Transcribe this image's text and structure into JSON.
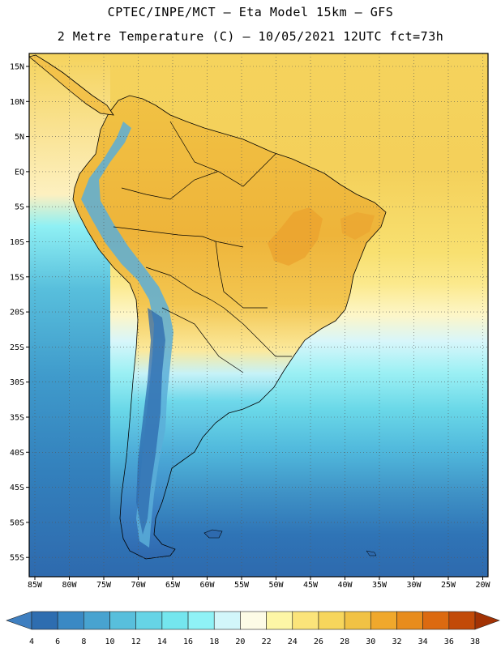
{
  "title": {
    "line1": "CPTEC/INPE/MCT –  Eta Model 15km – GFS",
    "line2": "2 Metre Temperature (C) – 10/05/2021 12UTC fct=73h"
  },
  "map": {
    "lat_labels": [
      "15N",
      "10N",
      "5N",
      "EQ",
      "5S",
      "10S",
      "15S",
      "20S",
      "25S",
      "30S",
      "35S",
      "40S",
      "45S",
      "50S",
      "55S"
    ],
    "lon_labels": [
      "85W",
      "80W",
      "75W",
      "70W",
      "65W",
      "60W",
      "55W",
      "50W",
      "45W",
      "40W",
      "35W",
      "30W",
      "25W",
      "20W"
    ]
  },
  "colorbar": {
    "labels": [
      "4",
      "6",
      "8",
      "10",
      "12",
      "14",
      "16",
      "18",
      "20",
      "22",
      "24",
      "26",
      "28",
      "30",
      "32",
      "34",
      "36",
      "38"
    ],
    "colors": [
      "#3f7fc0",
      "#2e6db0",
      "#3a89c4",
      "#48a3d0",
      "#58bfdc",
      "#66d4e6",
      "#74e6ee",
      "#8ff2f6",
      "#d2f6fa",
      "#fdfbe6",
      "#fdf6a6",
      "#fbe47a",
      "#f7d65c",
      "#f1c244",
      "#f0a82c",
      "#e88c1c",
      "#dc6a10",
      "#c24a08",
      "#a23204"
    ],
    "bins": 19
  },
  "colors": {
    "ocean_warm": "#f5d35d",
    "land_hot": "#eeb23a",
    "ocean_cold": "#2e6db0"
  }
}
